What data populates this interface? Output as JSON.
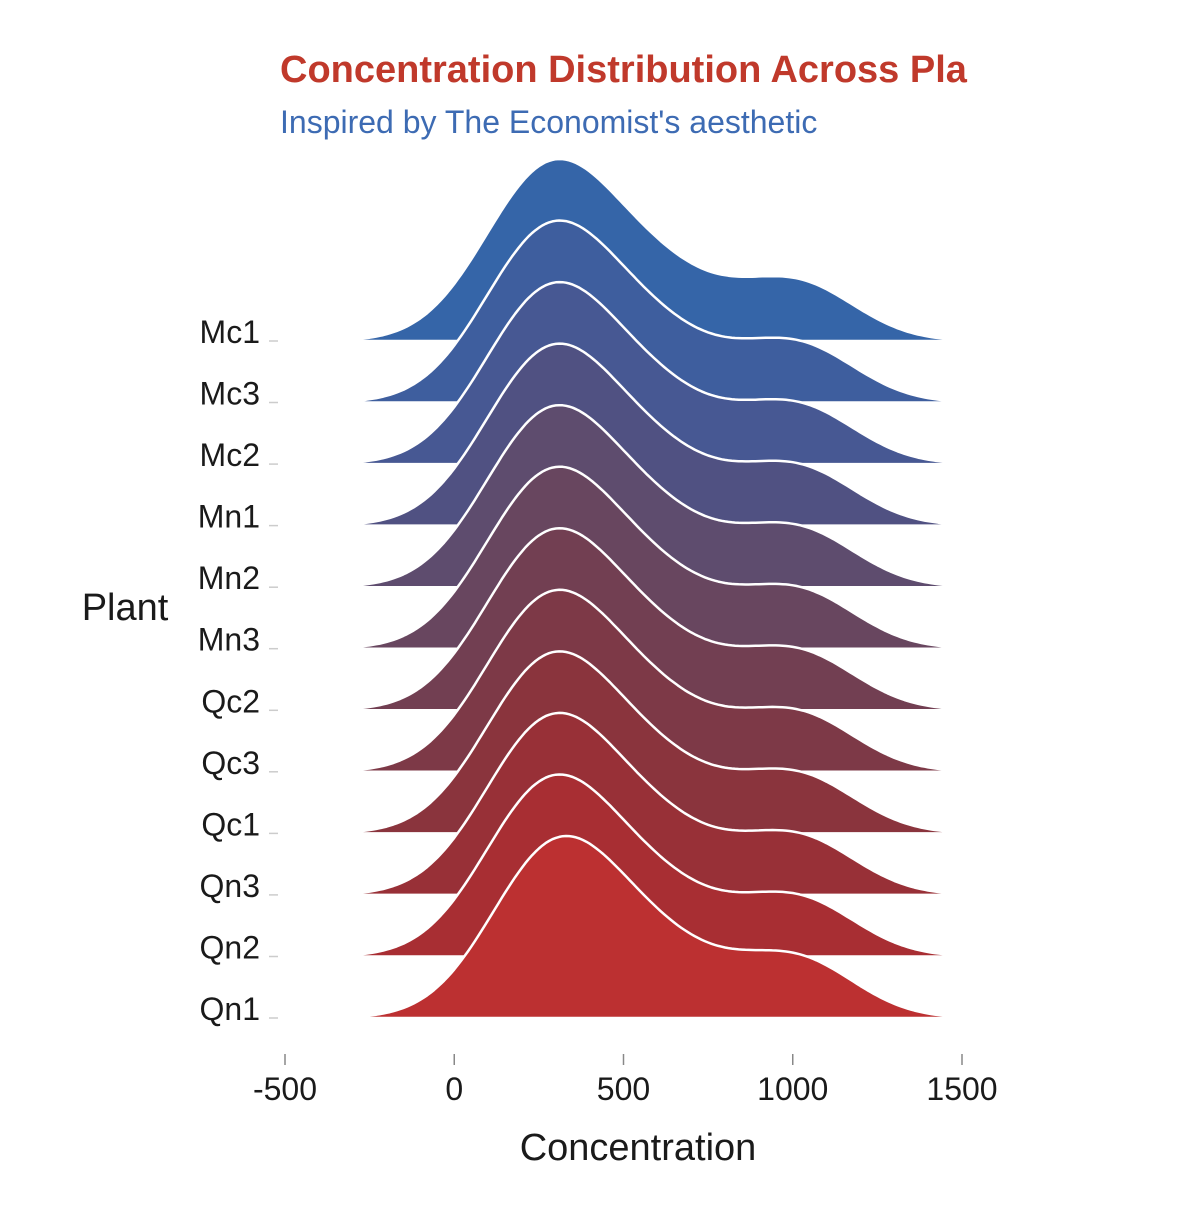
{
  "chart_data": {
    "type": "ridgeline",
    "title": "Concentration Distribution Across Pla",
    "subtitle": "Inspired by The Economist's aesthetic",
    "xlabel": "Concentration",
    "ylabel": "Plant",
    "xlim": [
      -500,
      1500
    ],
    "x_ticks": [
      "-500",
      "0",
      "500",
      "1000",
      "1500"
    ],
    "x_tick_values": [
      -500,
      0,
      500,
      1000,
      1500
    ],
    "density_range": [
      -350,
      1450
    ],
    "grid": false,
    "legend": "none",
    "series": [
      {
        "name": "Mc1",
        "peak": 260,
        "color": "#3565a8"
      },
      {
        "name": "Mc3",
        "peak": 260,
        "color": "#3e5e9e"
      },
      {
        "name": "Mc2",
        "peak": 260,
        "color": "#475893"
      },
      {
        "name": "Mn1",
        "peak": 260,
        "color": "#505182"
      },
      {
        "name": "Mn2",
        "peak": 260,
        "color": "#5e4c6e"
      },
      {
        "name": "Mn3",
        "peak": 260,
        "color": "#68465f"
      },
      {
        "name": "Qc2",
        "peak": 260,
        "color": "#723f52"
      },
      {
        "name": "Qc3",
        "peak": 260,
        "color": "#7d3947"
      },
      {
        "name": "Qc1",
        "peak": 260,
        "color": "#8a343d"
      },
      {
        "name": "Qn3",
        "peak": 260,
        "color": "#983037"
      },
      {
        "name": "Qn2",
        "peak": 260,
        "color": "#a82e33"
      },
      {
        "name": "Qn1",
        "peak": 280,
        "color": "#bc3031"
      }
    ]
  }
}
